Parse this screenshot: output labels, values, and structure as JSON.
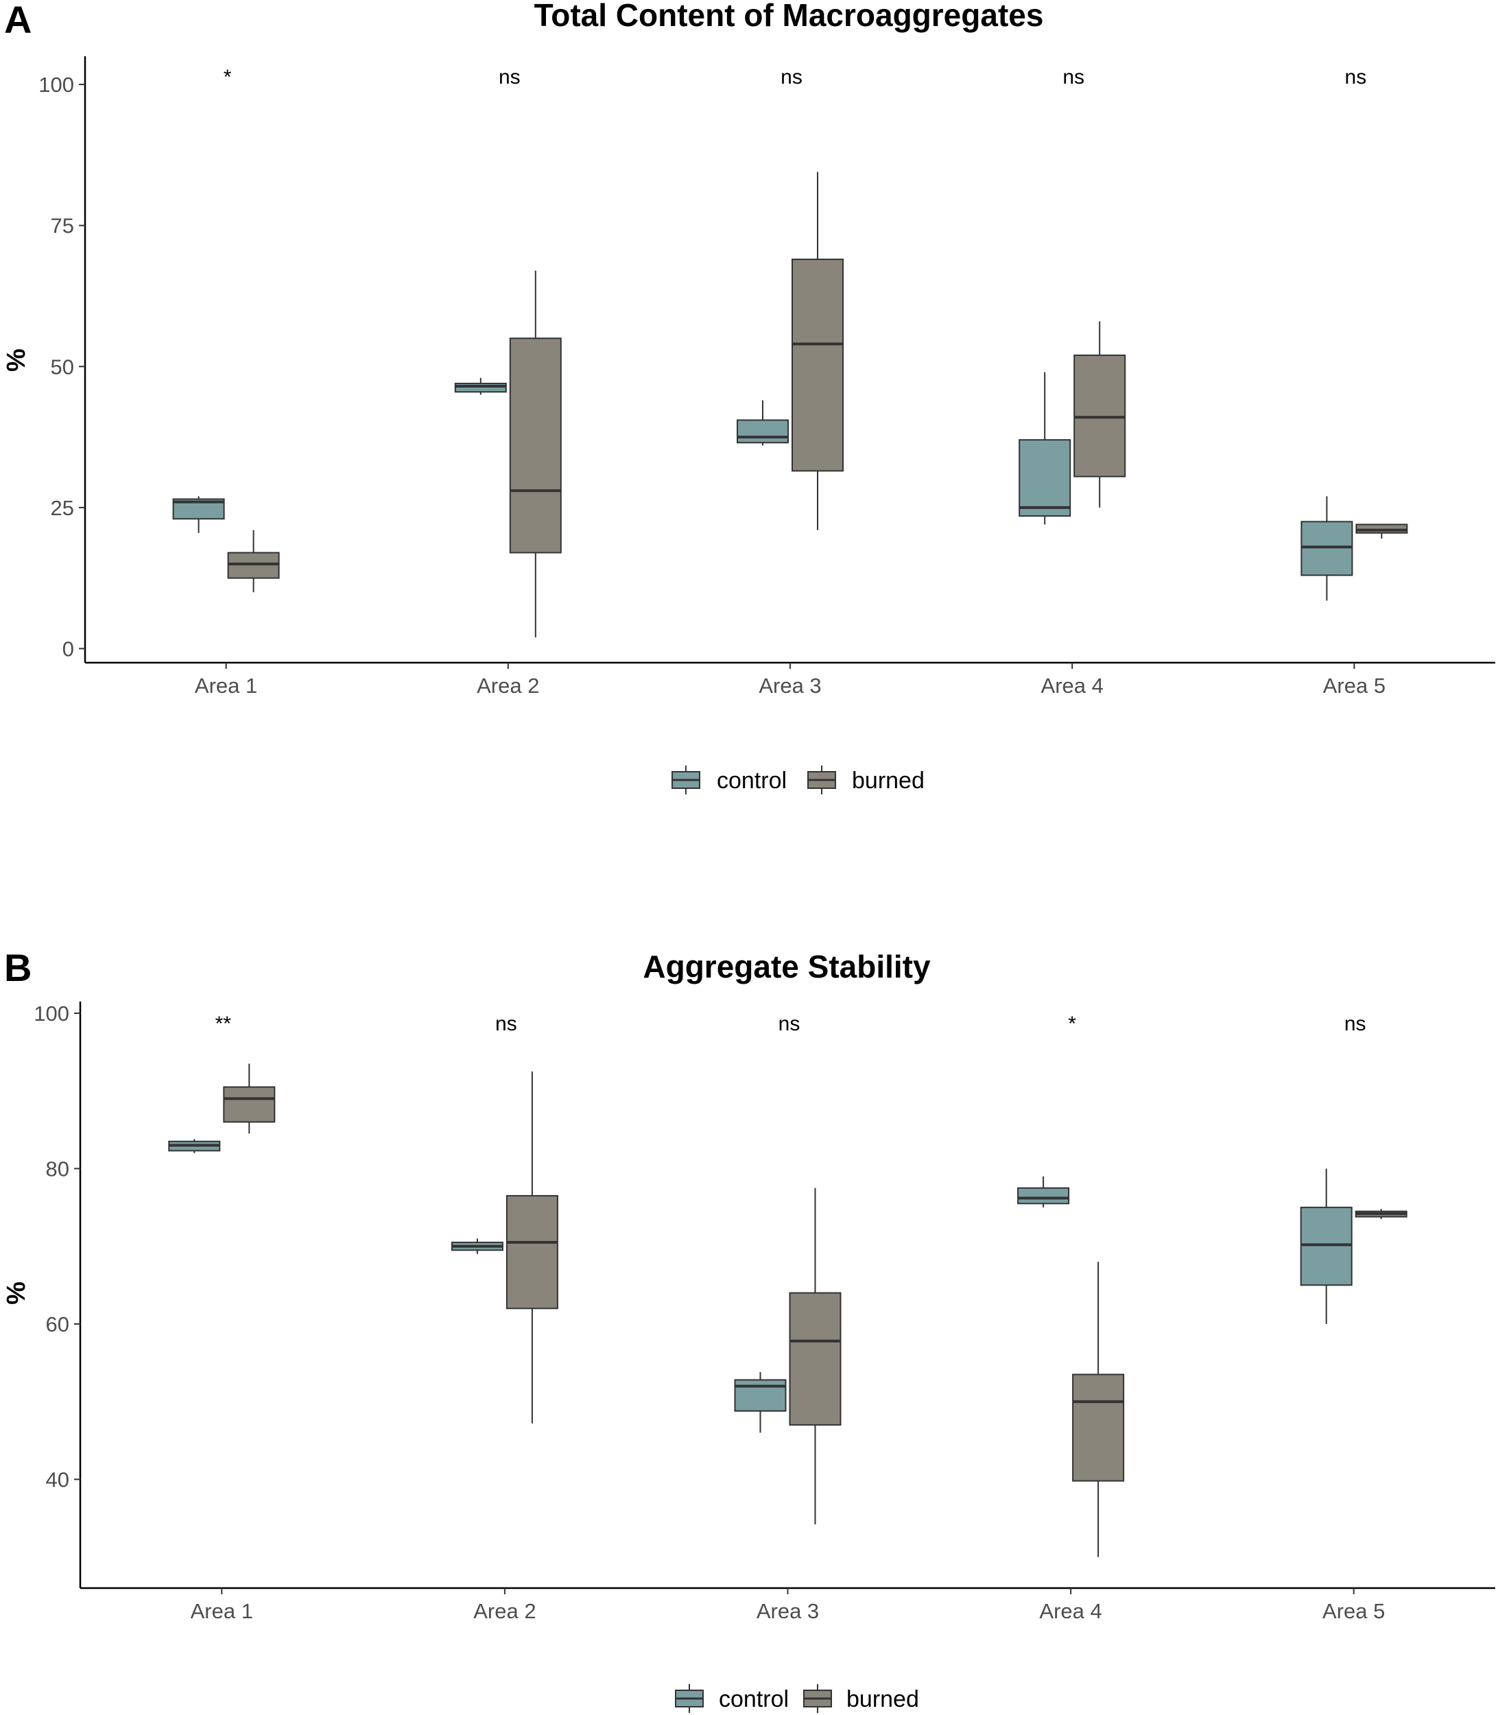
{
  "legend": {
    "position": "bottom",
    "entries": [
      {
        "label": "control",
        "color": "#7b9ea1"
      },
      {
        "label": "burned",
        "color": "#8a857b"
      }
    ]
  },
  "chart_data": [
    {
      "panel": "A",
      "type": "box",
      "title": "Total Content of Macroaggregates",
      "ylabel": "%",
      "xlabel": "",
      "ylim": [
        -2.5,
        105
      ],
      "yticks": [
        0,
        25,
        50,
        75,
        100
      ],
      "grid": false,
      "categories": [
        "Area 1",
        "Area 2",
        "Area 3",
        "Area 4",
        "Area 5"
      ],
      "significance": [
        "*",
        "ns",
        "ns",
        "ns",
        "ns"
      ],
      "series": [
        {
          "name": "control",
          "boxes": [
            {
              "min": 20.5,
              "q1": 23,
              "median": 26,
              "q3": 26.5,
              "max": 27
            },
            {
              "min": 45,
              "q1": 45.5,
              "median": 46.5,
              "q3": 47,
              "max": 48
            },
            {
              "min": 36,
              "q1": 36.5,
              "median": 37.5,
              "q3": 40.5,
              "max": 44
            },
            {
              "min": 22,
              "q1": 23.5,
              "median": 25,
              "q3": 37,
              "max": 49
            },
            {
              "min": 8.5,
              "q1": 13,
              "median": 18,
              "q3": 22.5,
              "max": 27
            }
          ]
        },
        {
          "name": "burned",
          "boxes": [
            {
              "min": 10,
              "q1": 12.5,
              "median": 15,
              "q3": 17,
              "max": 21
            },
            {
              "min": 2,
              "q1": 17,
              "median": 28,
              "q3": 55,
              "max": 67
            },
            {
              "min": 21,
              "q1": 31.5,
              "median": 54,
              "q3": 69,
              "max": 84.5
            },
            {
              "min": 25,
              "q1": 30.5,
              "median": 41,
              "q3": 52,
              "max": 58
            },
            {
              "min": 19.5,
              "q1": 20.5,
              "median": 21,
              "q3": 22,
              "max": 22
            }
          ]
        }
      ]
    },
    {
      "panel": "B",
      "type": "box",
      "title": "Aggregate Stability",
      "ylabel": "%",
      "xlabel": "",
      "ylim": [
        26,
        101.5
      ],
      "yticks": [
        40,
        60,
        80,
        100
      ],
      "grid": false,
      "categories": [
        "Area 1",
        "Area 2",
        "Area 3",
        "Area 4",
        "Area 5"
      ],
      "significance": [
        "**",
        "ns",
        "ns",
        "*",
        "ns"
      ],
      "series": [
        {
          "name": "control",
          "boxes": [
            {
              "min": 82,
              "q1": 82.3,
              "median": 83,
              "q3": 83.5,
              "max": 83.8
            },
            {
              "min": 69,
              "q1": 69.5,
              "median": 70,
              "q3": 70.5,
              "max": 71
            },
            {
              "min": 46,
              "q1": 48.8,
              "median": 52,
              "q3": 52.8,
              "max": 53.8
            },
            {
              "min": 75,
              "q1": 75.5,
              "median": 76.2,
              "q3": 77.5,
              "max": 79
            },
            {
              "min": 60,
              "q1": 65,
              "median": 70.2,
              "q3": 75,
              "max": 80
            }
          ]
        },
        {
          "name": "burned",
          "boxes": [
            {
              "min": 84.5,
              "q1": 86,
              "median": 89,
              "q3": 90.5,
              "max": 93.5
            },
            {
              "min": 47.2,
              "q1": 62,
              "median": 70.5,
              "q3": 76.5,
              "max": 92.5
            },
            {
              "min": 34.2,
              "q1": 47,
              "median": 57.8,
              "q3": 64,
              "max": 77.5
            },
            {
              "min": 30,
              "q1": 39.8,
              "median": 50,
              "q3": 53.5,
              "max": 68
            },
            {
              "min": 73.5,
              "q1": 73.8,
              "median": 74.2,
              "q3": 74.5,
              "max": 74.8
            }
          ]
        }
      ]
    }
  ]
}
